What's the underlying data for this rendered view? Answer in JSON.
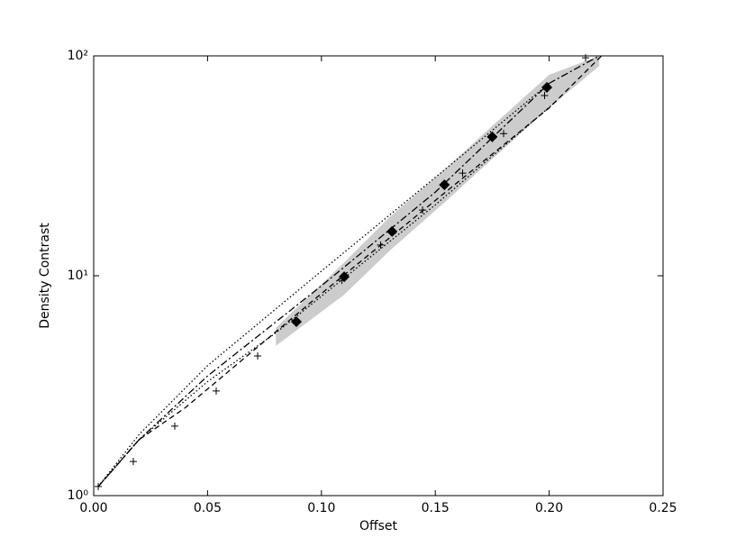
{
  "chart_data": {
    "type": "line",
    "xlabel": "Offset",
    "ylabel": "Density Contrast",
    "xlim": [
      0,
      0.25
    ],
    "ylim": [
      1,
      100
    ],
    "yscale": "log",
    "xticks": [
      {
        "value": 0,
        "label": "0.00"
      },
      0.05,
      {
        "value": 0.1,
        "label": "0.10"
      },
      0.15,
      {
        "value": 0.2,
        "label": "0.20"
      },
      0.25
    ],
    "yticks": [
      {
        "value": 1,
        "label": "10⁰"
      },
      {
        "value": 10,
        "label": "10¹"
      },
      {
        "value": 100,
        "label": "10²"
      }
    ],
    "band": {
      "color": "#cccccc",
      "x": [
        0.08,
        0.11,
        0.13,
        0.155,
        0.175,
        0.2,
        0.222
      ],
      "lower": [
        4.8,
        8.2,
        13,
        22,
        34,
        58,
        90
      ],
      "upper": [
        5.8,
        11.5,
        18.5,
        31,
        48,
        82,
        100
      ]
    },
    "series": [
      {
        "color": "#000000",
        "marker": "none",
        "dash": "6,4",
        "x": [
          0.002,
          0.02,
          0.04,
          0.1,
          0.15,
          0.2,
          0.223
        ],
        "values": [
          1.1,
          1.8,
          2.5,
          8.3,
          22,
          58,
          100
        ]
      },
      {
        "color": "#000000",
        "marker": "none",
        "dash": "8,3,2,3",
        "x": [
          0.002,
          0.02,
          0.05,
          0.1,
          0.15,
          0.2,
          0.222
        ],
        "values": [
          1.1,
          1.8,
          3.5,
          9,
          24,
          75,
          100
        ]
      },
      {
        "color": "#000000",
        "marker": "none",
        "dash": "1.5,2.5",
        "x": [
          0.002,
          0.02,
          0.05,
          0.1,
          0.15,
          0.2
        ],
        "values": [
          1.1,
          1.9,
          3.9,
          10.5,
          28,
          75
        ]
      },
      {
        "color": "#000000",
        "marker": "none",
        "dash": "1.5,2.5",
        "x": [
          0.002,
          0.02,
          0.05,
          0.08,
          0.15,
          0.203
        ],
        "values": [
          1.1,
          1.8,
          3.3,
          5.5,
          21,
          62
        ]
      },
      {
        "color": "#000000",
        "marker": "+",
        "x": [
          0.002,
          0.0174,
          0.0356,
          0.0538,
          0.072,
          0.109,
          0.126,
          0.1444,
          0.162,
          0.18,
          0.198,
          0.216
        ],
        "values": [
          1.1,
          1.43,
          2.07,
          2.99,
          4.32,
          9.53,
          13.8,
          19.9,
          29.3,
          44.3,
          66,
          98
        ]
      },
      {
        "color": "#000000",
        "marker": "D",
        "x": [
          0.089,
          0.11,
          0.131,
          0.154,
          0.175,
          0.199
        ],
        "values": [
          6.18,
          9.9,
          15.9,
          25.9,
          42.8,
          71.9
        ]
      }
    ]
  }
}
